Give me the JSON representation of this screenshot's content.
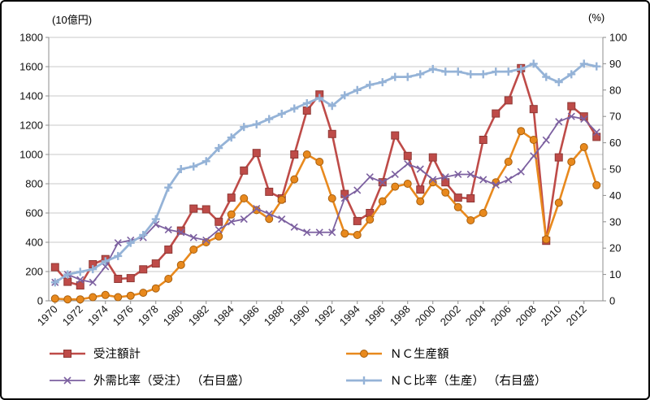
{
  "chart_data": {
    "type": "line",
    "x": [
      1970,
      1971,
      1972,
      1973,
      1974,
      1975,
      1976,
      1977,
      1978,
      1979,
      1980,
      1981,
      1982,
      1983,
      1984,
      1985,
      1986,
      1987,
      1988,
      1989,
      1990,
      1991,
      1992,
      1993,
      1994,
      1995,
      1996,
      1997,
      1998,
      1999,
      2000,
      2001,
      2002,
      2003,
      2004,
      2005,
      2006,
      2007,
      2008,
      2009,
      2010,
      2011,
      2012,
      2013
    ],
    "x_tick_step": 2,
    "left_axis": {
      "unit": "(10億円)",
      "min": 0,
      "max": 1800,
      "step": 200
    },
    "right_axis": {
      "unit": "(%)",
      "min": 0,
      "max": 100,
      "step": 10
    },
    "grid": true,
    "legend_position": "bottom",
    "series": [
      {
        "name": "受注額計",
        "axis": "left",
        "marker": "square",
        "color": "#be4b48",
        "marker_stroke": "#8f3835",
        "line_width": 2.6,
        "values": [
          230,
          130,
          105,
          250,
          285,
          150,
          155,
          215,
          255,
          350,
          480,
          630,
          625,
          540,
          705,
          890,
          1010,
          745,
          700,
          1000,
          1300,
          1410,
          1140,
          730,
          545,
          600,
          810,
          1130,
          990,
          760,
          980,
          810,
          705,
          700,
          1100,
          1280,
          1370,
          1590,
          1310,
          410,
          980,
          1330,
          1260,
          1120
        ]
      },
      {
        "name": "ＮＣ生産額",
        "axis": "left",
        "marker": "circle",
        "color": "#e8891d",
        "marker_stroke": "#a85f0e",
        "line_width": 2.6,
        "values": [
          15,
          10,
          10,
          25,
          40,
          25,
          35,
          55,
          85,
          150,
          245,
          350,
          400,
          440,
          590,
          700,
          620,
          560,
          690,
          830,
          1000,
          950,
          700,
          460,
          450,
          555,
          680,
          780,
          800,
          680,
          810,
          740,
          640,
          550,
          600,
          810,
          950,
          1160,
          1100,
          420,
          670,
          950,
          1050,
          790
        ]
      },
      {
        "name": "外需比率（受注） （右目盛）",
        "axis": "right",
        "marker": "x",
        "color": "#7c60a0",
        "marker_stroke": "#7c60a0",
        "line_width": 1.8,
        "values": [
          7,
          10,
          8,
          7,
          13,
          22,
          23,
          24,
          29,
          27,
          26,
          24,
          23,
          27,
          30,
          31,
          35,
          33,
          31,
          28,
          26,
          26,
          26,
          39,
          42,
          47,
          45,
          48,
          52,
          50,
          46,
          47,
          48,
          48,
          46,
          44,
          46,
          49,
          55,
          61,
          68,
          70,
          69,
          64
        ]
      },
      {
        "name": "ＮＣ比率（生産） （右目盛）",
        "axis": "right",
        "marker": "plus",
        "color": "#95b3d7",
        "marker_stroke": "#95b3d7",
        "line_width": 2.8,
        "values": [
          7,
          10,
          11,
          12,
          15,
          17,
          22,
          25,
          31,
          43,
          50,
          51,
          53,
          58,
          62,
          66,
          67,
          69,
          71,
          73,
          75,
          77,
          74,
          78,
          80,
          82,
          83,
          85,
          85,
          86,
          88,
          87,
          87,
          86,
          86,
          87,
          87,
          88,
          90,
          85,
          83,
          86,
          90,
          89
        ]
      }
    ]
  }
}
